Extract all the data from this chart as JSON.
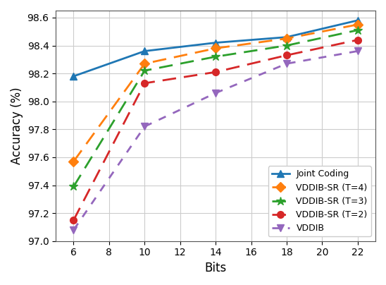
{
  "title": "",
  "xlabel": "Bits",
  "ylabel": "Accuracy (%)",
  "xlim": [
    5,
    23
  ],
  "ylim": [
    97.0,
    98.65
  ],
  "xticks": [
    6,
    8,
    10,
    12,
    14,
    16,
    18,
    20,
    22
  ],
  "yticks": [
    97.0,
    97.2,
    97.4,
    97.6,
    97.8,
    98.0,
    98.2,
    98.4,
    98.6
  ],
  "series": [
    {
      "label": "Joint Coding",
      "x": [
        6,
        10,
        14,
        18,
        22
      ],
      "y": [
        98.18,
        98.36,
        98.42,
        98.46,
        98.58
      ],
      "color": "#1f77b4",
      "linestyle": "-",
      "marker": "^",
      "markersize": 7,
      "linewidth": 2.0,
      "dashes": []
    },
    {
      "label": "VDDIB-SR (T=4)",
      "x": [
        6,
        10,
        14,
        18,
        22
      ],
      "y": [
        97.57,
        98.27,
        98.38,
        98.45,
        98.55
      ],
      "color": "#ff7f0e",
      "linestyle": "--",
      "marker": "D",
      "markersize": 7,
      "linewidth": 2.0,
      "dashes": [
        7,
        4
      ]
    },
    {
      "label": "VDDIB-SR (T=3)",
      "x": [
        6,
        10,
        14,
        18,
        22
      ],
      "y": [
        97.39,
        98.22,
        98.32,
        98.4,
        98.51
      ],
      "color": "#2ca02c",
      "linestyle": "--",
      "marker": "*",
      "markersize": 9,
      "linewidth": 2.0,
      "dashes": [
        7,
        4
      ]
    },
    {
      "label": "VDDIB-SR (T=2)",
      "x": [
        6,
        10,
        14,
        18,
        22
      ],
      "y": [
        97.15,
        98.13,
        98.21,
        98.33,
        98.44
      ],
      "color": "#d62728",
      "linestyle": "--",
      "marker": "o",
      "markersize": 7,
      "linewidth": 2.0,
      "dashes": [
        7,
        4
      ]
    },
    {
      "label": "VDDIB",
      "x": [
        6,
        10,
        14,
        18,
        22
      ],
      "y": [
        97.08,
        97.82,
        98.06,
        98.27,
        98.36
      ],
      "color": "#9467bd",
      "linestyle": "--",
      "marker": "v",
      "markersize": 7,
      "linewidth": 2.0,
      "dashes": [
        4,
        4
      ]
    }
  ],
  "legend_loc": "lower right",
  "grid": true,
  "grid_color": "#cccccc",
  "background_color": "#ffffff",
  "figsize": [
    5.48,
    4.04
  ],
  "dpi": 100
}
